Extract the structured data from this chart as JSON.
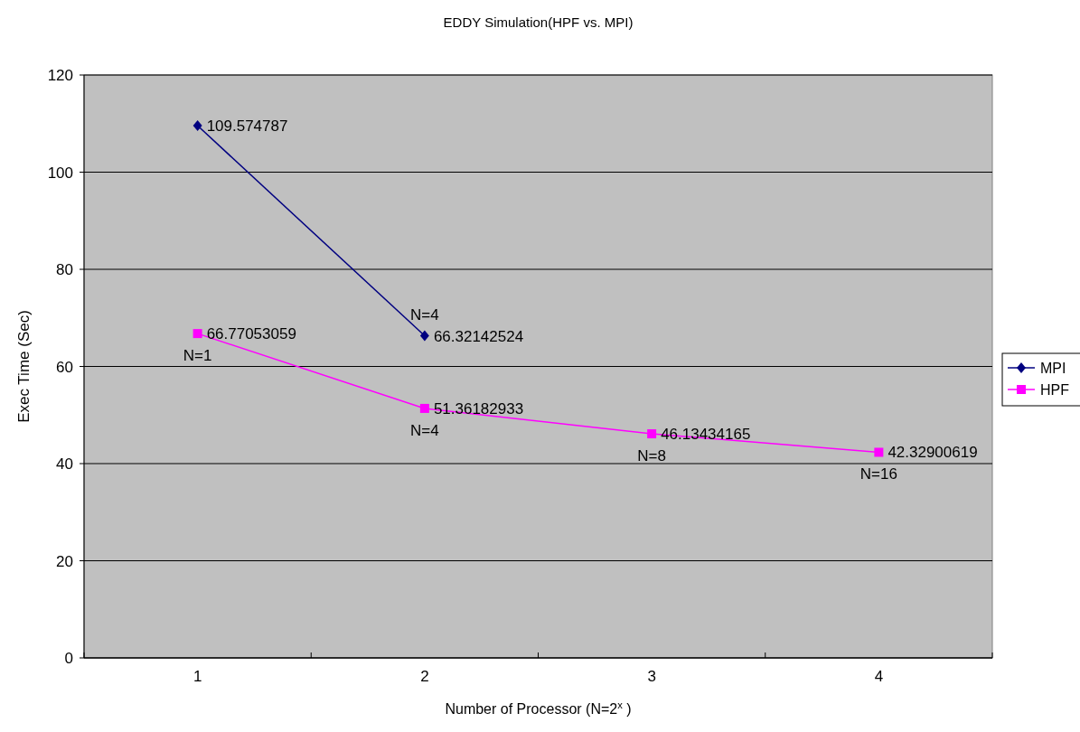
{
  "chart_data": {
    "type": "line",
    "title": "EDDY Simulation(HPF vs. MPI)",
    "xlabel": "Number of Processor (N=2$^{x}$ )",
    "ylabel": "Exec Time (Sec)",
    "categories": [
      "1",
      "2",
      "3",
      "4"
    ],
    "series": [
      {
        "name": "MPI",
        "color": "#000080",
        "marker": "diamond",
        "values": [
          109.574787,
          66.32142524,
          null,
          null
        ]
      },
      {
        "name": "HPF",
        "color": "#ff00ff",
        "marker": "square",
        "values": [
          66.77053059,
          51.36182933,
          46.13434165,
          42.32900619
        ]
      }
    ],
    "ylim": [
      0,
      120
    ],
    "yticks": [
      0,
      20,
      40,
      60,
      80,
      100,
      120
    ],
    "grid": "y",
    "legend": "right",
    "data_labels": true,
    "annotations": [
      {
        "text": "N=1",
        "x": "1",
        "y": 66.77053059
      },
      {
        "text": "N=4",
        "x": "2",
        "y": 66.32142524
      },
      {
        "text": "N=4",
        "x": "2",
        "y": 51.36182933
      },
      {
        "text": "N=8",
        "x": "3",
        "y": 46.13434165
      },
      {
        "text": "N=16",
        "x": "4",
        "y": 42.32900619
      }
    ]
  }
}
